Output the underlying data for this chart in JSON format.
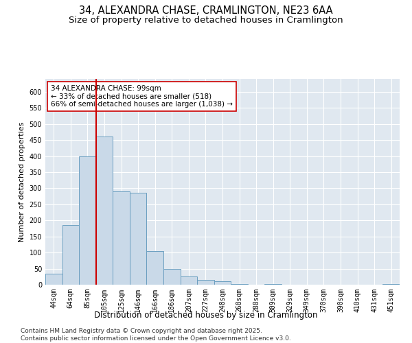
{
  "title_line1": "34, ALEXANDRA CHASE, CRAMLINGTON, NE23 6AA",
  "title_line2": "Size of property relative to detached houses in Cramlington",
  "xlabel": "Distribution of detached houses by size in Cramlington",
  "ylabel": "Number of detached properties",
  "bar_labels": [
    "44sqm",
    "64sqm",
    "85sqm",
    "105sqm",
    "125sqm",
    "146sqm",
    "166sqm",
    "186sqm",
    "207sqm",
    "227sqm",
    "248sqm",
    "268sqm",
    "288sqm",
    "309sqm",
    "329sqm",
    "349sqm",
    "370sqm",
    "390sqm",
    "410sqm",
    "431sqm",
    "451sqm"
  ],
  "bar_values": [
    35,
    185,
    400,
    460,
    290,
    285,
    105,
    50,
    25,
    15,
    10,
    2,
    0,
    2,
    0,
    0,
    0,
    0,
    0,
    0,
    2
  ],
  "bar_color": "#c9d9e8",
  "bar_edge_color": "#6a9ec0",
  "vline_x": 3.0,
  "vline_color": "#cc0000",
  "annotation_text": "34 ALEXANDRA CHASE: 99sqm\n← 33% of detached houses are smaller (518)\n66% of semi-detached houses are larger (1,038) →",
  "annotation_box_color": "#ffffff",
  "annotation_box_edge_color": "#cc0000",
  "ylim": [
    0,
    640
  ],
  "yticks": [
    0,
    50,
    100,
    150,
    200,
    250,
    300,
    350,
    400,
    450,
    500,
    550,
    600
  ],
  "bg_color": "#e0e8f0",
  "footer_text": "Contains HM Land Registry data © Crown copyright and database right 2025.\nContains public sector information licensed under the Open Government Licence v3.0.",
  "title_fontsize": 10.5,
  "subtitle_fontsize": 9.5,
  "tick_fontsize": 7,
  "annotation_fontsize": 7.5,
  "footer_fontsize": 6.5,
  "ylabel_fontsize": 8,
  "xlabel_fontsize": 8.5
}
